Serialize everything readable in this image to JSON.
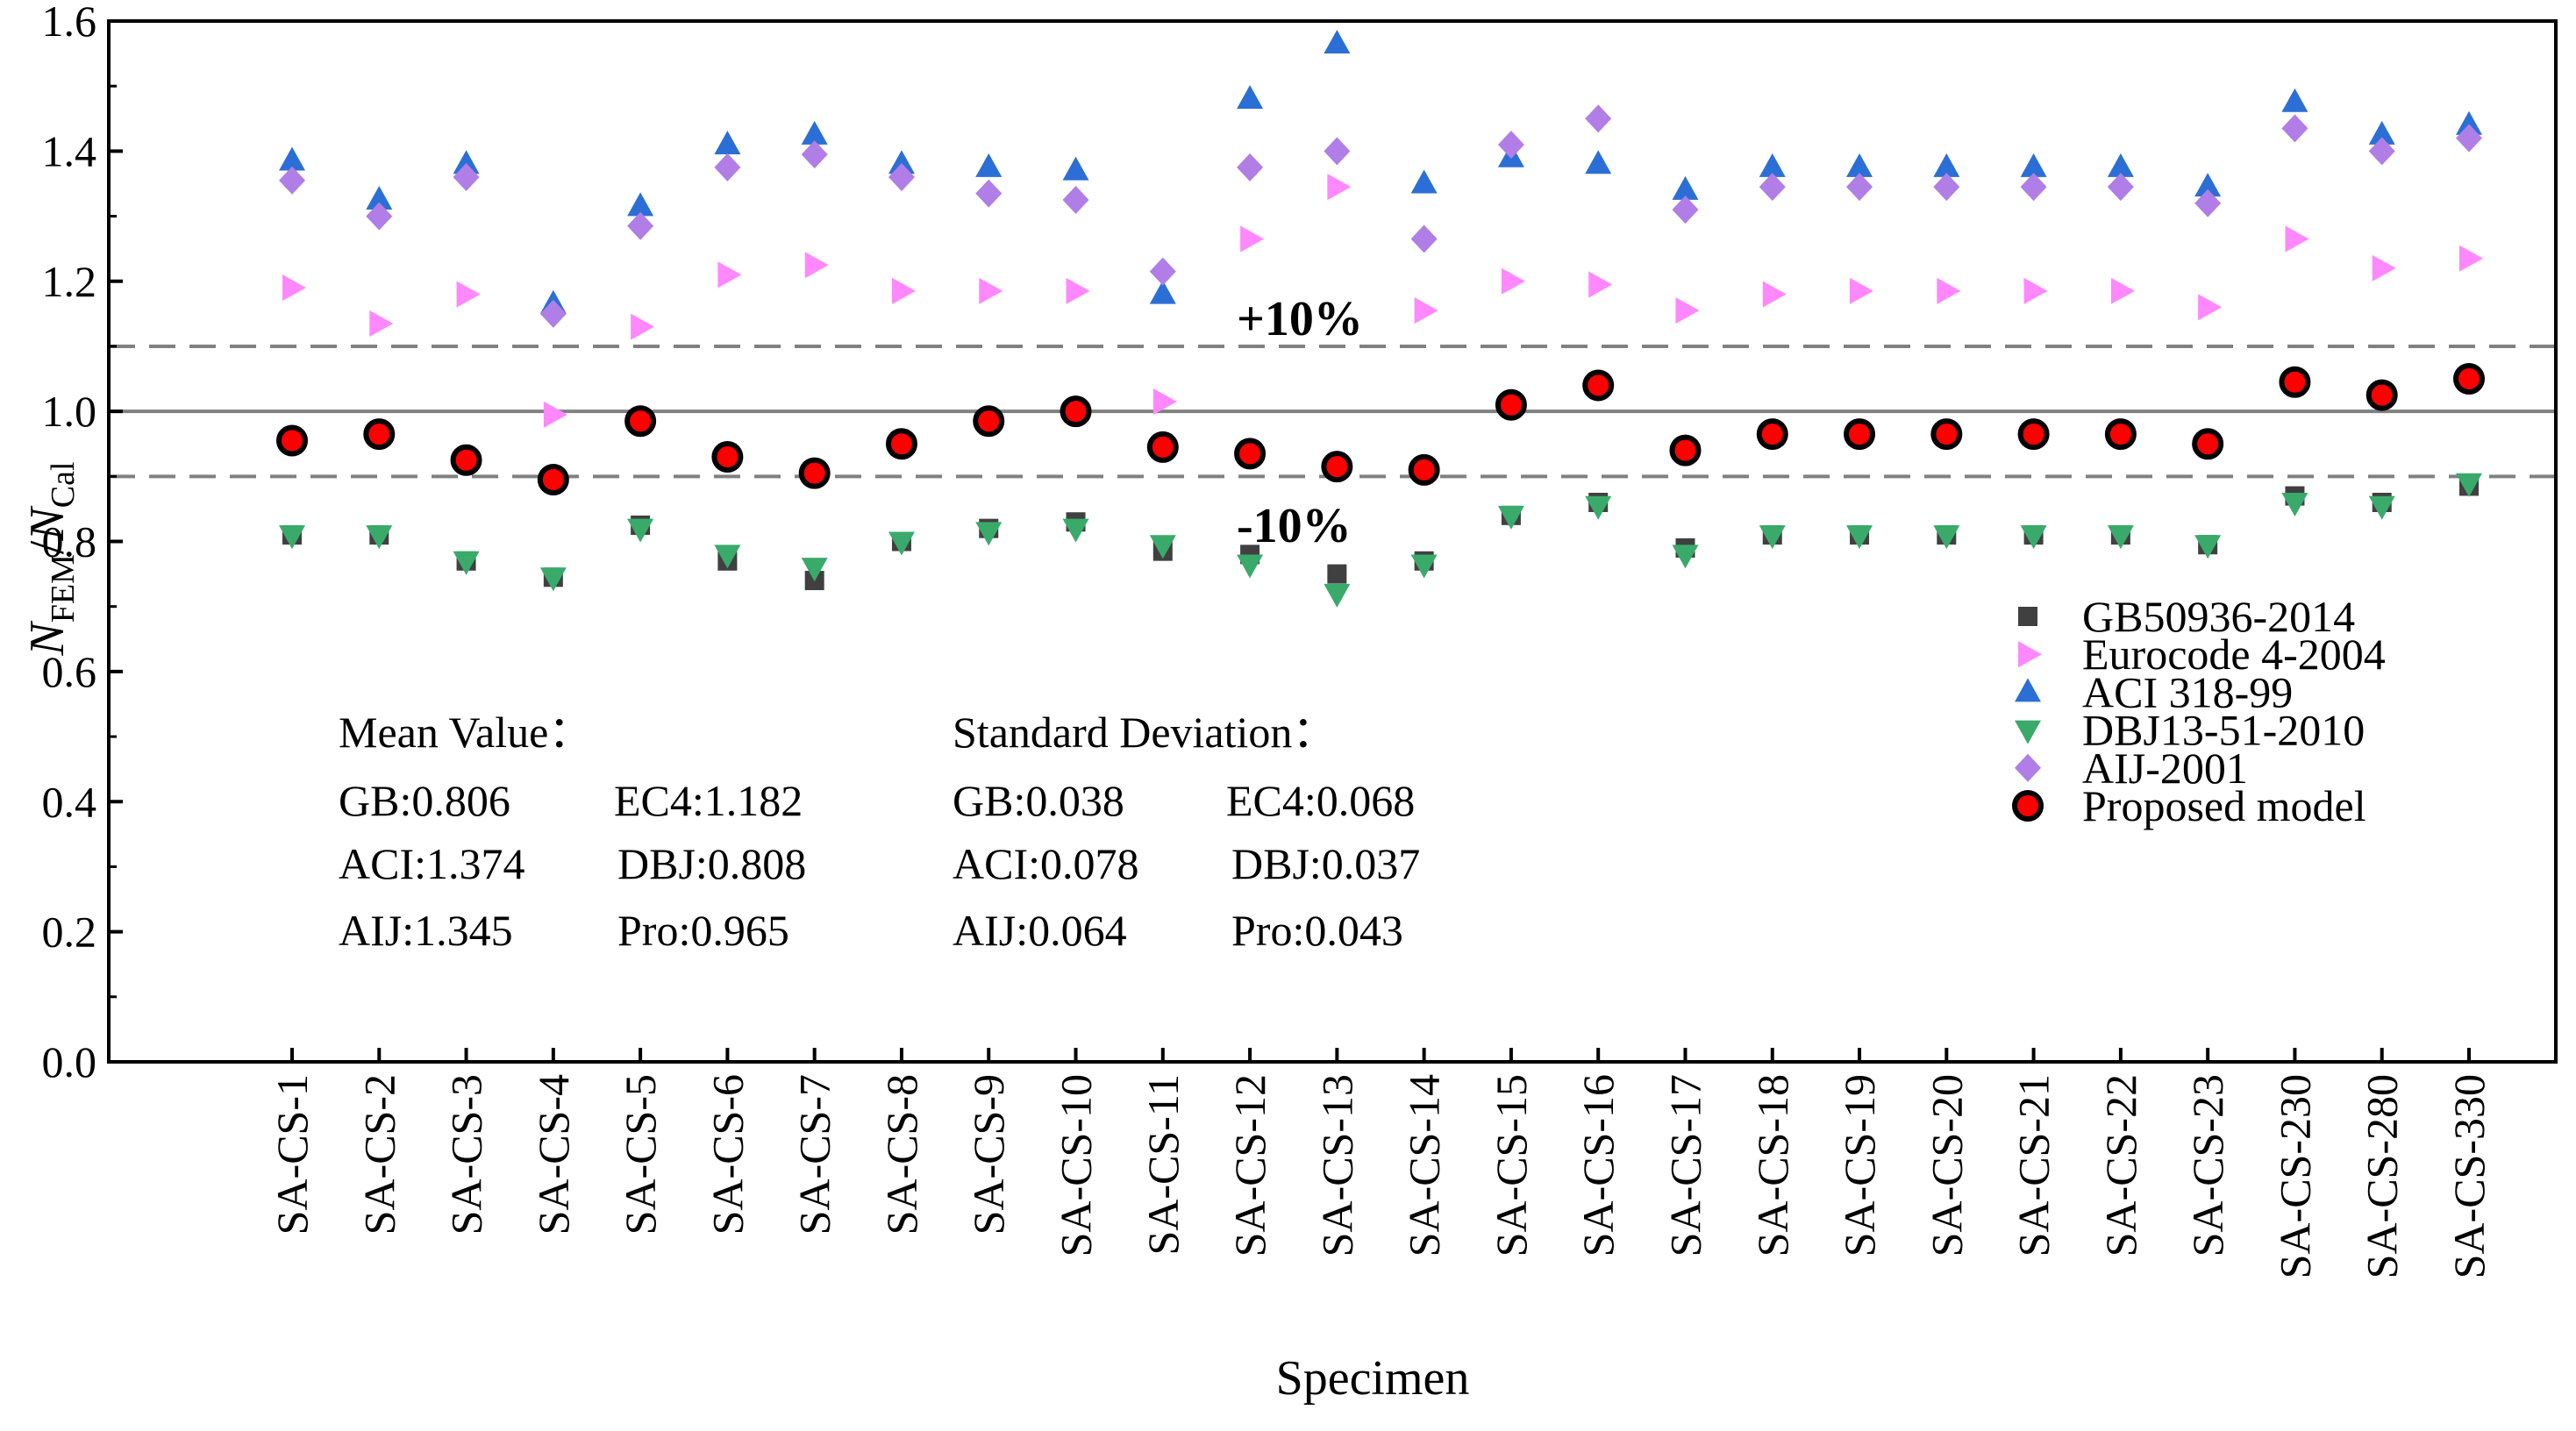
{
  "chart_data": {
    "type": "scatter",
    "xlabel": "Specimen",
    "ylabel": {
      "main": "N",
      "sub1": "FEM",
      "slash": "/",
      "main2": "N",
      "sub2": "Cal"
    },
    "ylim": [
      0,
      1.6
    ],
    "yticks": [
      "0.0",
      "0.2",
      "0.4",
      "0.6",
      "0.8",
      "1.0",
      "1.2",
      "1.4",
      "1.6"
    ],
    "categories": [
      "SA-CS-1",
      "SA-CS-2",
      "SA-CS-3",
      "SA-CS-4",
      "SA-CS-5",
      "SA-CS-6",
      "SA-CS-7",
      "SA-CS-8",
      "SA-CS-9",
      "SA-CS-10",
      "SA-CS-11",
      "SA-CS-12",
      "SA-CS-13",
      "SA-CS-14",
      "SA-CS-15",
      "SA-CS-16",
      "SA-CS-17",
      "SA-CS-18",
      "SA-CS-19",
      "SA-CS-20",
      "SA-CS-21",
      "SA-CS-22",
      "SA-CS-23",
      "SA-CS-230",
      "SA-CS-280",
      "SA-CS-330"
    ],
    "reference_lines": [
      {
        "y": 1.1,
        "style": "dashed",
        "label": "+10%"
      },
      {
        "y": 1.0,
        "style": "solid",
        "label": ""
      },
      {
        "y": 0.9,
        "style": "dashed",
        "label": "-10%"
      }
    ],
    "series": [
      {
        "name": "GB50936-2014",
        "marker": "square",
        "color": "#404040",
        "values": [
          0.81,
          0.81,
          0.77,
          0.745,
          0.825,
          0.77,
          0.74,
          0.8,
          0.82,
          0.83,
          0.785,
          0.78,
          0.75,
          0.77,
          0.84,
          0.86,
          0.79,
          0.81,
          0.81,
          0.81,
          0.81,
          0.81,
          0.795,
          0.87,
          0.86,
          0.885
        ]
      },
      {
        "name": "Eurocode 4-2004",
        "marker": "triangle-right",
        "color": "#ff88ff",
        "values": [
          1.19,
          1.135,
          1.18,
          0.995,
          1.13,
          1.21,
          1.225,
          1.185,
          1.185,
          1.185,
          1.015,
          1.265,
          1.345,
          1.155,
          1.2,
          1.195,
          1.155,
          1.18,
          1.185,
          1.185,
          1.185,
          1.185,
          1.16,
          1.265,
          1.22,
          1.235
        ]
      },
      {
        "name": "ACI 318-99",
        "marker": "triangle-up",
        "color": "#2b6fd6",
        "values": [
          1.385,
          1.325,
          1.38,
          1.165,
          1.315,
          1.41,
          1.425,
          1.38,
          1.375,
          1.37,
          1.18,
          1.48,
          1.565,
          1.35,
          1.39,
          1.38,
          1.34,
          1.375,
          1.375,
          1.375,
          1.375,
          1.375,
          1.345,
          1.475,
          1.425,
          1.44
        ]
      },
      {
        "name": "DBJ13-51-2010",
        "marker": "triangle-down",
        "color": "#3aaa6a",
        "values": [
          0.81,
          0.81,
          0.77,
          0.745,
          0.82,
          0.78,
          0.76,
          0.8,
          0.815,
          0.82,
          0.795,
          0.765,
          0.72,
          0.765,
          0.84,
          0.855,
          0.78,
          0.81,
          0.81,
          0.81,
          0.81,
          0.81,
          0.795,
          0.86,
          0.855,
          0.89
        ]
      },
      {
        "name": "AIJ-2001",
        "marker": "diamond",
        "color": "#b07ee6",
        "values": [
          1.355,
          1.3,
          1.36,
          1.15,
          1.285,
          1.375,
          1.395,
          1.36,
          1.335,
          1.325,
          1.215,
          1.375,
          1.4,
          1.265,
          1.41,
          1.45,
          1.31,
          1.345,
          1.345,
          1.345,
          1.345,
          1.345,
          1.32,
          1.435,
          1.4,
          1.42
        ]
      },
      {
        "name": "Proposed model",
        "marker": "circle",
        "color": "#ff0000",
        "values": [
          0.955,
          0.965,
          0.925,
          0.895,
          0.985,
          0.93,
          0.905,
          0.95,
          0.985,
          1.0,
          0.945,
          0.935,
          0.915,
          0.91,
          1.01,
          1.04,
          0.94,
          0.965,
          0.965,
          0.965,
          0.965,
          0.965,
          0.95,
          1.045,
          1.025,
          1.05
        ]
      }
    ],
    "legend_position": "bottom-right",
    "annotations": {
      "mean": {
        "title": "Mean Value：",
        "rows": [
          [
            "GB:0.806",
            "EC4:1.182"
          ],
          [
            "ACI:1.374",
            "DBJ:0.808"
          ],
          [
            "AIJ:1.345",
            "Pro:0.965"
          ]
        ]
      },
      "std": {
        "title": "Standard Deviation：",
        "rows": [
          [
            "GB:0.038",
            "EC4:0.068"
          ],
          [
            "ACI:0.078",
            "DBJ:0.037"
          ],
          [
            "AIJ:0.064",
            "Pro:0.043"
          ]
        ]
      }
    }
  }
}
